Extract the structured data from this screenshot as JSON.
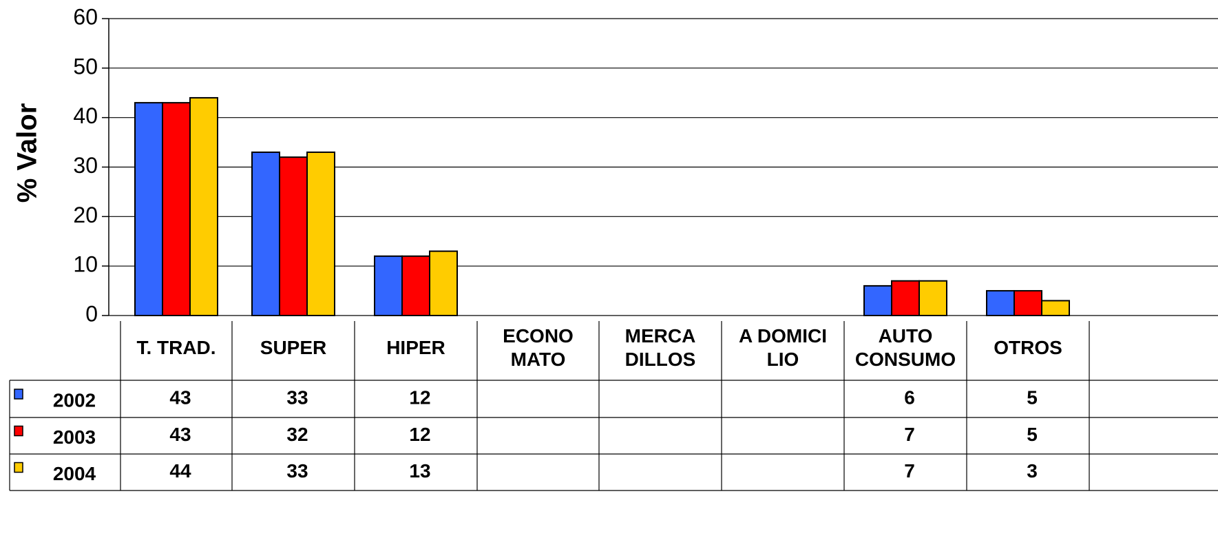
{
  "chart_data": {
    "type": "bar",
    "y_label": "% Valor",
    "categories": [
      "T. TRAD.",
      "SUPER",
      "HIPER",
      "ECONO\nMATO",
      "MERCA\nDILLOS",
      "A DOMICI\nLIO",
      "AUTO\nCONSUMO",
      "OTROS"
    ],
    "series": [
      {
        "name": "2002",
        "color": "#3366ff",
        "values": [
          43,
          33,
          12,
          null,
          null,
          null,
          6,
          5
        ]
      },
      {
        "name": "2003",
        "color": "#ff0000",
        "values": [
          43,
          32,
          12,
          null,
          null,
          null,
          7,
          5
        ]
      },
      {
        "name": "2004",
        "color": "#ffcc00",
        "values": [
          44,
          33,
          13,
          null,
          null,
          null,
          7,
          3
        ]
      }
    ],
    "ylim": [
      0,
      60
    ],
    "yticks": [
      0,
      10,
      20,
      30,
      40,
      50,
      60
    ],
    "grid": true
  }
}
